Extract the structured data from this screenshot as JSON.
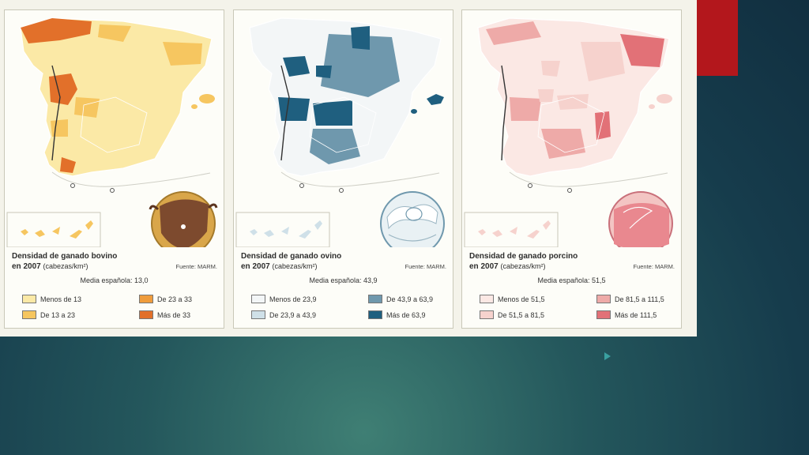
{
  "slide": {
    "accent_color": "#b3171c",
    "background_color": "#173f4f"
  },
  "maps": [
    {
      "title": "Densidad de ganado bovino",
      "subtitle_year": "en 2007",
      "unit": "(cabezas/km²)",
      "source": "Fuente: MARM.",
      "mean_label": "Media española: 13,0",
      "icon": "cow-icon",
      "legend": [
        {
          "label": "Menos de 13",
          "color": "#fbe9a6"
        },
        {
          "label": "De 13 a 23",
          "color": "#f6c660"
        },
        {
          "label": "De 23 a 33",
          "color": "#ef9c3c"
        },
        {
          "label": "Más de 33",
          "color": "#e2702a"
        }
      ]
    },
    {
      "title": "Densidad de ganado ovino",
      "subtitle_year": "en 2007",
      "unit": "(cabezas/km²)",
      "source": "Fuente: MARM.",
      "mean_label": "Media española: 43,9",
      "icon": "sheep-icon",
      "legend": [
        {
          "label": "Menos de 23,9",
          "color": "#f3f6f7"
        },
        {
          "label": "De 23,9 a 43,9",
          "color": "#cfe0e8"
        },
        {
          "label": "De 43,9 a 63,9",
          "color": "#6f98ad"
        },
        {
          "label": "Más de 63,9",
          "color": "#1f5f7f"
        }
      ]
    },
    {
      "title": "Densidad de ganado porcino",
      "subtitle_year": "en 2007",
      "unit": "(cabezas/km²)",
      "source": "Fuente: MARM.",
      "mean_label": "Media española: 51,5",
      "icon": "pig-icon",
      "legend": [
        {
          "label": "Menos de 51,5",
          "color": "#fbe8e4"
        },
        {
          "label": "De 51,5 a 81,5",
          "color": "#f6d2cd"
        },
        {
          "label": "De 81,5 a 111,5",
          "color": "#eeaaa8"
        },
        {
          "label": "Más de 111,5",
          "color": "#e27177"
        }
      ]
    }
  ]
}
